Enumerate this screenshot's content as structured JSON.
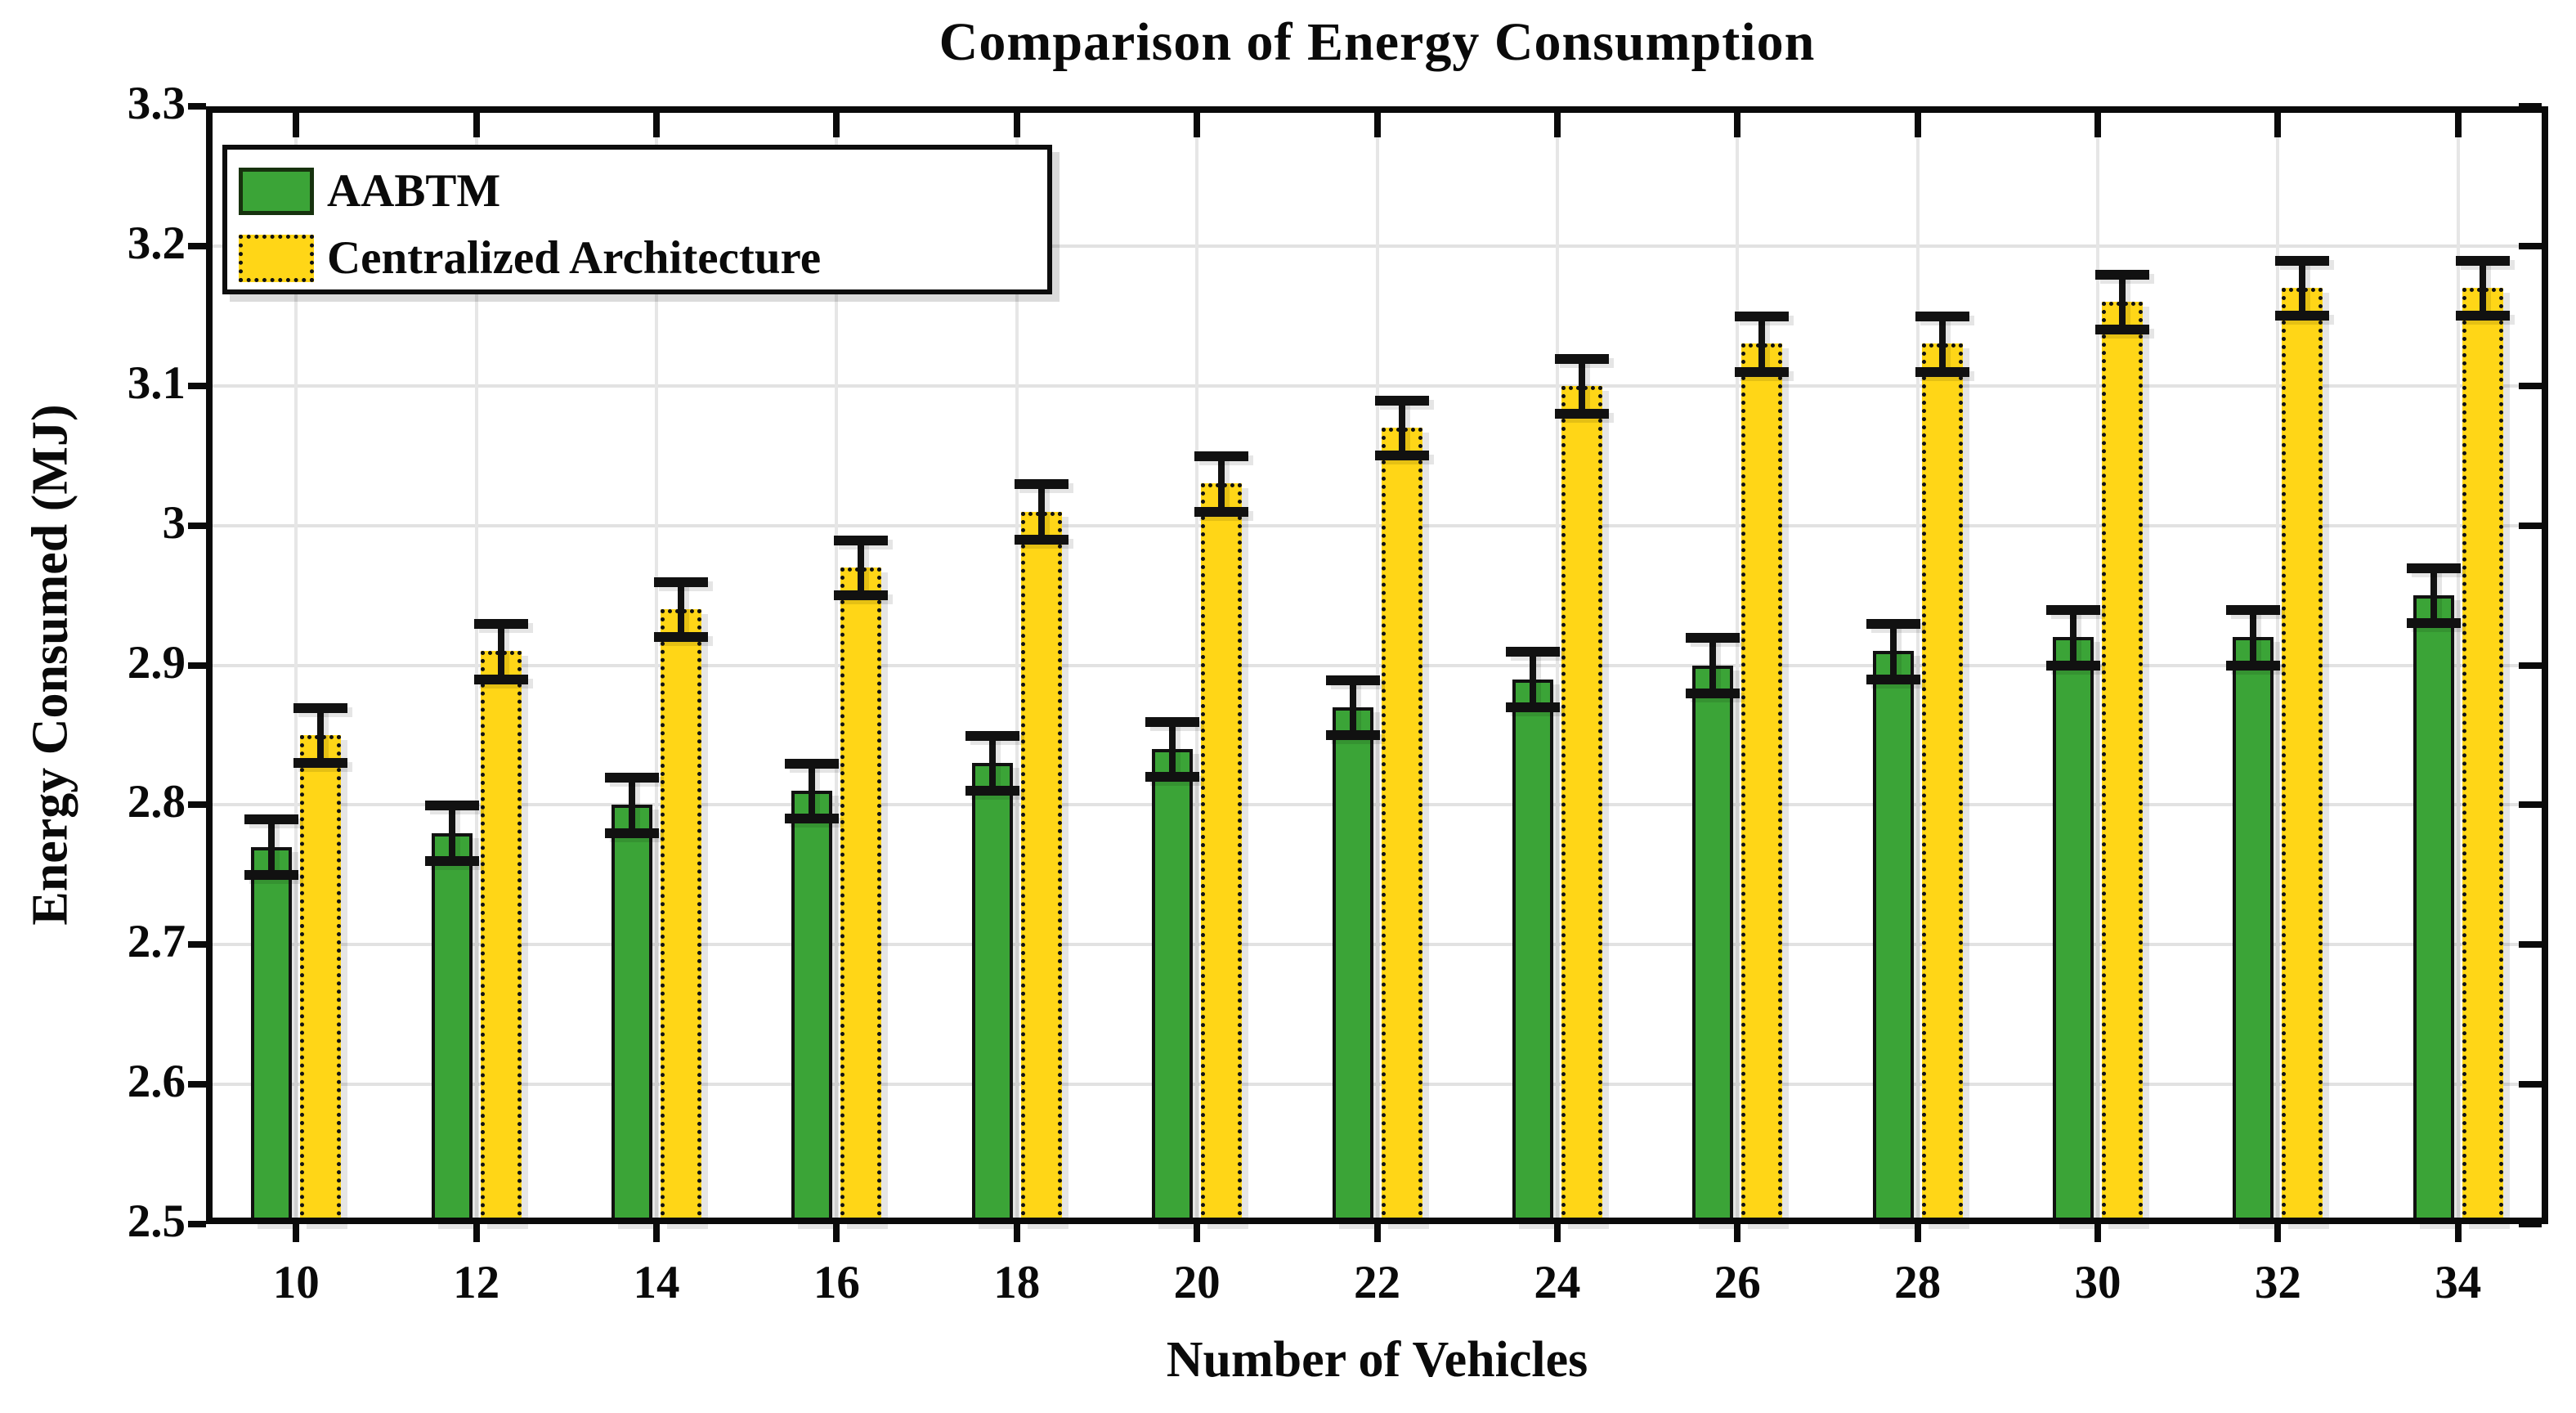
{
  "figure": {
    "title": "Comparison of Energy Consumption",
    "x_label": "Number of Vehicles",
    "y_label": "Energy Consumed (MJ)"
  },
  "legend": {
    "position": "top-left",
    "items": [
      {
        "label": "AABTM",
        "color": "#3BA437",
        "edge": "solid"
      },
      {
        "label": "Centralized Architecture",
        "color": "#FFD617",
        "edge": "dotted"
      }
    ]
  },
  "chart_data": {
    "type": "bar",
    "title": "Comparison of Energy Consumption",
    "xlabel": "Number of Vehicles",
    "ylabel": "Energy Consumed (MJ)",
    "categories": [
      "10",
      "12",
      "14",
      "16",
      "18",
      "20",
      "22",
      "24",
      "26",
      "28",
      "30",
      "32",
      "34"
    ],
    "series": [
      {
        "name": "AABTM",
        "color": "#3BA437",
        "edge": "solid",
        "values": [
          2.77,
          2.78,
          2.8,
          2.81,
          2.83,
          2.84,
          2.87,
          2.89,
          2.9,
          2.91,
          2.92,
          2.92,
          2.95
        ],
        "error": 0.02
      },
      {
        "name": "Centralized Architecture",
        "color": "#FFD617",
        "edge": "dotted",
        "values": [
          2.85,
          2.91,
          2.94,
          2.97,
          3.01,
          3.03,
          3.07,
          3.1,
          3.13,
          3.13,
          3.16,
          3.17,
          3.17
        ],
        "error": 0.02
      }
    ],
    "ylim": [
      2.5,
      3.3
    ],
    "ytick_step": 0.1,
    "y_tick_labels": [
      "2.5",
      "2.6",
      "2.7",
      "2.8",
      "2.9",
      "3",
      "3.1",
      "3.2",
      "3.3"
    ],
    "grid": true,
    "legend_position": "top-left",
    "colors": {
      "grid": "#e2e2e2",
      "frame": "#0a0a0a",
      "error_bar": "#111111",
      "background": "#ffffff"
    }
  }
}
